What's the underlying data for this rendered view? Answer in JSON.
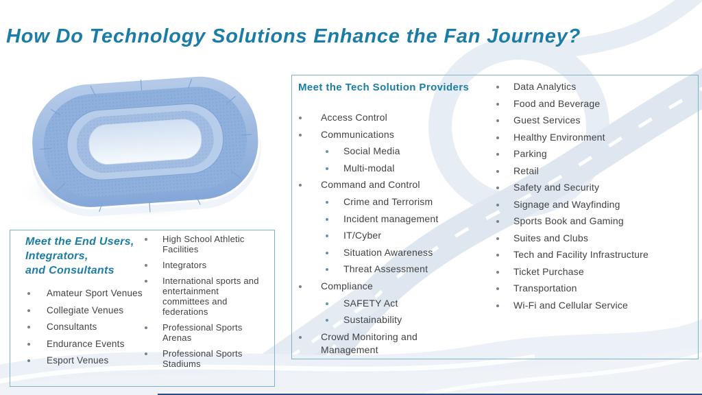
{
  "title": "How Do Technology Solutions Enhance the Fan Journey?",
  "colors": {
    "accent_teal": "#1b7ca6",
    "body_text": "#3f4143",
    "box_border": "#7db2c9",
    "bullet_gray": "#76828f",
    "bullet_blue": "#5d93b8",
    "stadium_blue": "#8fb0dc",
    "bottom_bar_navy": "#2b4c85"
  },
  "stadium": {
    "alt": "stadium-illustration"
  },
  "end_users_box": {
    "heading_lines": [
      "Meet the End Users,",
      "Integrators,",
      "and Consultants"
    ],
    "col1": [
      "Amateur Sport Venues",
      "Collegiate Venues",
      "Consultants",
      "Endurance Events",
      "Esport Venues"
    ],
    "col2": [
      "High School Athletic Facilities",
      "Integrators",
      "International sports and entertainment committees and federations",
      "Professional Sports Arenas",
      "Professional Sports Stadiums"
    ]
  },
  "tech_box": {
    "heading": "Meet the Tech Solution Providers",
    "items": [
      {
        "label": "Access Control",
        "level": 1
      },
      {
        "label": "Communications",
        "level": 1
      },
      {
        "label": "Social Media",
        "level": 2
      },
      {
        "label": "Multi-modal",
        "level": 2
      },
      {
        "label": "Command and Control",
        "level": 1
      },
      {
        "label": "Crime and Terrorism",
        "level": 2
      },
      {
        "label": "Incident management",
        "level": 2
      },
      {
        "label": "IT/Cyber",
        "level": 2
      },
      {
        "label": "Situation Awareness",
        "level": 2
      },
      {
        "label": "Threat Assessment",
        "level": 2
      },
      {
        "label": "Compliance",
        "level": 1
      },
      {
        "label": "SAFETY Act",
        "level": 2
      },
      {
        "label": "Sustainability",
        "level": 2
      },
      {
        "label": "Crowd Monitoring and Management",
        "level": 1
      }
    ],
    "right_items": [
      "Data Analytics",
      "Food and Beverage",
      "Guest Services",
      "Healthy Environment",
      "Parking",
      "Retail",
      "Safety and Security",
      "Signage and Wayfinding",
      "Sports Book and Gaming",
      "Suites and Clubs",
      "Tech and Facility Infrastructure",
      "Ticket Purchase",
      "Transportation",
      "Wi-Fi and Cellular Service"
    ]
  }
}
